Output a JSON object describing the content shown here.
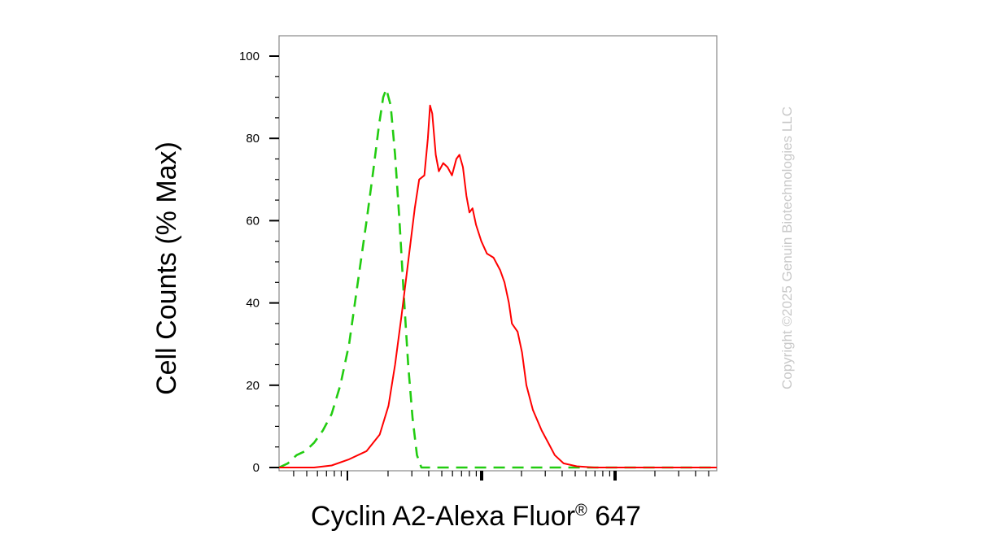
{
  "chart_data": {
    "type": "line",
    "title": "",
    "xlabel": "Cyclin A2-Alexa Fluor",
    "xlabel_superscript": "®",
    "xlabel_suffix": " 647",
    "ylabel": "Cell Counts (% Max)",
    "xscale": "log",
    "ylim": [
      0,
      105
    ],
    "yticks": [
      0,
      20,
      40,
      60,
      80,
      100
    ],
    "ytick_labels": [
      "0",
      "20",
      "40",
      "60",
      "80",
      "100"
    ],
    "xtick_labels": [],
    "grid": false,
    "series": [
      {
        "style": "dashed",
        "color": "#22cc11",
        "points": [
          [
            0.0,
            0
          ],
          [
            0.02,
            1
          ],
          [
            0.04,
            3
          ],
          [
            0.06,
            4
          ],
          [
            0.08,
            6
          ],
          [
            0.1,
            9
          ],
          [
            0.12,
            13
          ],
          [
            0.14,
            20
          ],
          [
            0.16,
            30
          ],
          [
            0.18,
            45
          ],
          [
            0.2,
            60
          ],
          [
            0.215,
            72
          ],
          [
            0.228,
            83
          ],
          [
            0.238,
            90
          ],
          [
            0.245,
            92
          ],
          [
            0.255,
            88
          ],
          [
            0.265,
            76
          ],
          [
            0.275,
            60
          ],
          [
            0.285,
            42
          ],
          [
            0.295,
            25
          ],
          [
            0.305,
            12
          ],
          [
            0.315,
            3
          ],
          [
            0.325,
            0
          ],
          [
            0.5,
            0
          ],
          [
            1.0,
            0
          ]
        ]
      },
      {
        "style": "solid",
        "color": "#ff0000",
        "points": [
          [
            0.0,
            0
          ],
          [
            0.08,
            0
          ],
          [
            0.12,
            0.5
          ],
          [
            0.16,
            2
          ],
          [
            0.2,
            4
          ],
          [
            0.23,
            8
          ],
          [
            0.25,
            15
          ],
          [
            0.265,
            25
          ],
          [
            0.28,
            37
          ],
          [
            0.295,
            50
          ],
          [
            0.31,
            63
          ],
          [
            0.32,
            70
          ],
          [
            0.332,
            71
          ],
          [
            0.34,
            80
          ],
          [
            0.345,
            88
          ],
          [
            0.35,
            86
          ],
          [
            0.358,
            76
          ],
          [
            0.365,
            72
          ],
          [
            0.375,
            74
          ],
          [
            0.385,
            73
          ],
          [
            0.395,
            71
          ],
          [
            0.405,
            75
          ],
          [
            0.412,
            76
          ],
          [
            0.42,
            73
          ],
          [
            0.428,
            66
          ],
          [
            0.435,
            62
          ],
          [
            0.442,
            63
          ],
          [
            0.45,
            59
          ],
          [
            0.462,
            55
          ],
          [
            0.475,
            52
          ],
          [
            0.49,
            51
          ],
          [
            0.505,
            48
          ],
          [
            0.515,
            45
          ],
          [
            0.525,
            40
          ],
          [
            0.532,
            35
          ],
          [
            0.545,
            33
          ],
          [
            0.555,
            28
          ],
          [
            0.565,
            20
          ],
          [
            0.58,
            14
          ],
          [
            0.6,
            9
          ],
          [
            0.615,
            6
          ],
          [
            0.63,
            3
          ],
          [
            0.65,
            1
          ],
          [
            0.68,
            0.3
          ],
          [
            0.72,
            0
          ],
          [
            1.0,
            0
          ]
        ]
      }
    ]
  },
  "copyright": "Copyright ©2025 Genuin Biotechnologies LLC"
}
